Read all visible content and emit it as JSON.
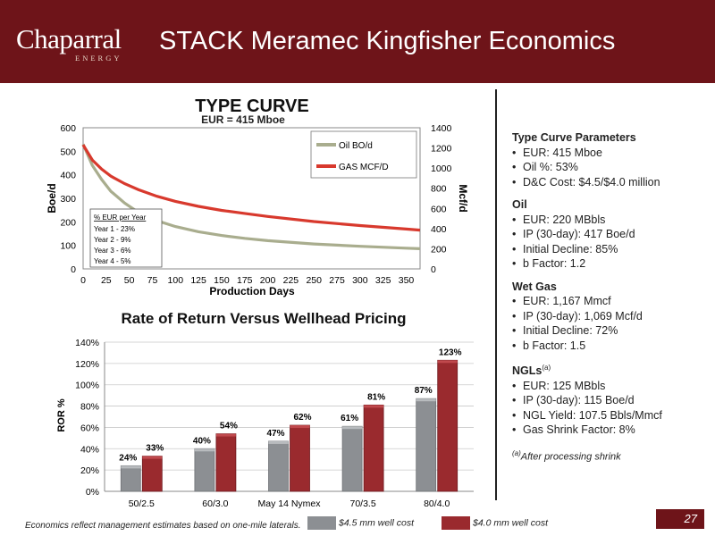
{
  "header": {
    "logo_text": "Chaparral",
    "logo_sub": "ENERGY",
    "title": "STACK Meramec Kingfisher Economics",
    "bg_color": "#6e1419"
  },
  "right_panel": {
    "sections": [
      {
        "heading": "Type Curve Parameters",
        "items": [
          "EUR: 415 Mboe",
          "Oil %: 53%",
          "D&C Cost: $4.5/$4.0 million"
        ]
      },
      {
        "heading": "Oil",
        "items": [
          "EUR: 220 MBbls",
          "IP (30-day): 417 Boe/d",
          "Initial Decline: 85%",
          "b Factor: 1.2"
        ]
      },
      {
        "heading": "Wet Gas",
        "items": [
          "EUR: 1,167 Mmcf",
          "IP (30-day): 1,069 Mcf/d",
          "Initial Decline: 72%",
          "b Factor: 1.5"
        ]
      },
      {
        "heading": "NGLs",
        "heading_sup": "(a)",
        "items": [
          "EUR: 125 MBbls",
          "IP (30-day): 115 Boe/d",
          "NGL Yield: 107.5 Bbls/Mmcf",
          "Gas Shrink Factor: 8%"
        ]
      }
    ],
    "footnote_sup": "(a)",
    "footnote": "After processing shrink"
  },
  "footer": {
    "note": "Economics reflect management estimates based on one-mile laterals.",
    "page_number": "27"
  },
  "chart_data": [
    {
      "type": "line",
      "title": "TYPE CURVE",
      "subtitle": "EUR = 415 Mboe",
      "xlabel": "Production Days",
      "ylabel": "Boe/d",
      "y2label": "Mcf/d",
      "xlim": [
        0,
        365
      ],
      "ylim": [
        0,
        600
      ],
      "y2lim": [
        0,
        1400
      ],
      "x_ticks": [
        0,
        25,
        50,
        75,
        100,
        125,
        150,
        175,
        200,
        225,
        250,
        275,
        300,
        325,
        350
      ],
      "y_ticks": [
        0,
        100,
        200,
        300,
        400,
        500,
        600
      ],
      "y2_ticks": [
        0,
        200,
        400,
        600,
        800,
        1000,
        1200,
        1400
      ],
      "grid": false,
      "legend_position": "top-right",
      "series": [
        {
          "name": "Oil BO/d",
          "axis": "left",
          "color": "#a9ad8e",
          "x": [
            0,
            10,
            20,
            30,
            45,
            60,
            80,
            100,
            125,
            150,
            175,
            200,
            250,
            300,
            350,
            365
          ],
          "y": [
            530,
            440,
            380,
            330,
            280,
            240,
            205,
            180,
            158,
            142,
            130,
            120,
            106,
            96,
            88,
            86
          ]
        },
        {
          "name": "GAS MCF/D",
          "axis": "right",
          "color": "#d8392d",
          "x": [
            0,
            10,
            20,
            30,
            45,
            60,
            80,
            100,
            125,
            150,
            175,
            200,
            250,
            300,
            350,
            365
          ],
          "y": [
            1230,
            1080,
            990,
            920,
            845,
            785,
            720,
            670,
            620,
            580,
            550,
            520,
            470,
            430,
            395,
            385
          ]
        }
      ],
      "annotation": {
        "title": "% EUR per Year",
        "lines": [
          "Year 1 - 23%",
          "Year 2 - 9%",
          "Year 3 - 6%",
          "Year 4 - 5%"
        ]
      }
    },
    {
      "type": "bar",
      "title": "Rate of Return Versus Wellhead Pricing",
      "xlabel": "",
      "ylabel": "ROR %",
      "ylim": [
        0,
        140
      ],
      "y_ticks": [
        "0%",
        "20%",
        "40%",
        "60%",
        "80%",
        "100%",
        "120%",
        "140%"
      ],
      "y_tick_values": [
        0,
        20,
        40,
        60,
        80,
        100,
        120,
        140
      ],
      "categories": [
        "50/2.5",
        "60/3.0",
        "May 14 Nymex",
        "70/3.5",
        "80/4.0"
      ],
      "legend_position": "bottom",
      "series": [
        {
          "name": "$4.5 mm well cost",
          "color": "#8c8f93",
          "values": [
            24,
            40,
            47,
            61,
            87
          ],
          "labels": [
            "24%",
            "40%",
            "47%",
            "61%",
            "87%"
          ]
        },
        {
          "name": "$4.0 mm well cost",
          "color": "#9a2a2e",
          "values": [
            33,
            54,
            62,
            81,
            123
          ],
          "labels": [
            "33%",
            "54%",
            "62%",
            "81%",
            "123%"
          ]
        }
      ]
    }
  ]
}
